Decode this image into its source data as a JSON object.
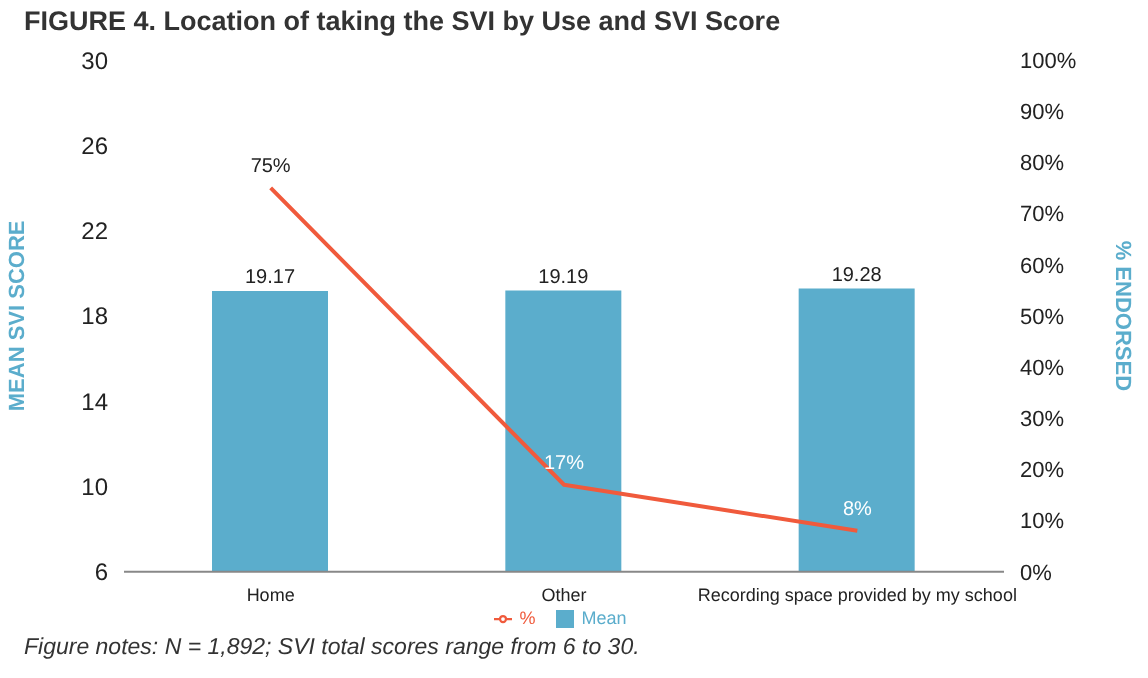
{
  "chart_data": {
    "type": "bar",
    "title": "FIGURE 4. Location of taking the SVI by Use and SVI Score",
    "ylabel": "MEAN SVI SCORE",
    "y2label": "% ENDORSED",
    "categories": [
      "Home",
      "Other",
      "Recording space provided by my school"
    ],
    "series": [
      {
        "name": "Mean",
        "color": "#5badcc",
        "values": [
          19.17,
          19.19,
          19.28
        ],
        "value_labels": [
          "19.17",
          "19.19",
          "19.28"
        ]
      },
      {
        "name": "%",
        "type": "line",
        "axis": "y2",
        "color": "#f05a3c",
        "values": [
          75,
          17,
          8
        ],
        "value_labels": [
          "75%",
          "17%",
          "8%"
        ]
      }
    ],
    "ylim": [
      6,
      30
    ],
    "yticks": [
      6,
      10,
      14,
      18,
      22,
      26,
      30
    ],
    "y2lim": [
      0,
      100
    ],
    "y2ticks": [
      {
        "value": 0,
        "label": "0%"
      },
      {
        "value": 10,
        "label": "10%"
      },
      {
        "value": 20,
        "label": "20%"
      },
      {
        "value": 30,
        "label": "30%"
      },
      {
        "value": 40,
        "label": "40%"
      },
      {
        "value": 50,
        "label": "50%"
      },
      {
        "value": 60,
        "label": "60%"
      },
      {
        "value": 70,
        "label": "70%"
      },
      {
        "value": 80,
        "label": "80%"
      },
      {
        "value": 90,
        "label": "90%"
      },
      {
        "value": 100,
        "label": "100%"
      }
    ],
    "grid": false,
    "legend": "bottom",
    "marker": "none",
    "line_style": "solid",
    "annotations": [
      "Figure notes: N = 1,892; SVI total scores range from 6 to 30."
    ]
  }
}
